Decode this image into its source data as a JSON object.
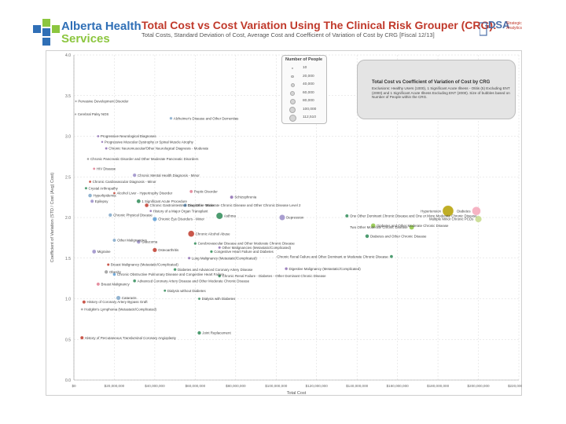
{
  "header": {
    "org_name_line1": "Alberta Health",
    "org_name_line2": "Services",
    "title": "Total Cost vs Cost Variation Using The Clinical Risk Grouper (CRG):",
    "subtitle": "Total Costs, Standard Deviation of Cost, Average Cost and Coefficient of Variation of Cost by CRG [Fiscal 12/13]",
    "partner_logo_main": "DSA",
    "partner_logo_sub_1": "Strategic",
    "partner_logo_sub_2": "Analytics"
  },
  "colors": {
    "brand_green": "#8cc63f",
    "brand_blue": "#2f6fb6",
    "title_red": "#c0392b",
    "grid": "#d8d8d8"
  },
  "legend": {
    "title": "Number of People",
    "entries": [
      "10",
      "20,000",
      "40,000",
      "60,000",
      "80,000",
      "100,000",
      "112,510"
    ]
  },
  "note": {
    "title": "Total Cost vs Coefficient of Variation of Cost by CRG",
    "body": "Exclusions: Healthy Users (1000), 1 Significant Acute Illness - Otitis (5) Excluding ENT (2000) and 1 Significant Acute Illness Excluding ENT (2000). Size of bubbles based on Number of People within the CRG."
  },
  "chart_data": {
    "type": "scatter",
    "title": "Total Cost vs Cost Variation Using The Clinical Risk Grouper (CRG)",
    "xlabel": "Total Cost",
    "ylabel": "Coefficient of Variation (STD / Cost (Avg) Cost)",
    "xlim": [
      0,
      220000000
    ],
    "ylim": [
      0,
      4
    ],
    "x_ticks": [
      "$0",
      "$20,000,000",
      "$40,000,000",
      "$60,000,000",
      "$80,000,000",
      "$100,000,000",
      "$120,000,000",
      "$140,000,000",
      "$160,000,000",
      "$180,000,000",
      "$200,000,000",
      "$220,000,000"
    ],
    "y_ticks": [
      "0.0",
      "0.5",
      "1.0",
      "1.5",
      "2.0",
      "2.5",
      "3.0",
      "3.5",
      "4.0"
    ],
    "points": [
      {
        "label": "Pervasive Development Disorder",
        "x": 1000000,
        "y": 3.43,
        "size": 10,
        "color": "#999999"
      },
      {
        "label": "Cerebral Palsy NOS",
        "x": 800000,
        "y": 3.27,
        "size": 10,
        "color": "#999999"
      },
      {
        "label": "Alzheimer's Disease and Other Dementias",
        "x": 48000000,
        "y": 3.22,
        "size": 1200,
        "color": "#7fa7c9"
      },
      {
        "label": "Progressive Neurological Diagnoses",
        "x": 12000000,
        "y": 3.0,
        "size": 300,
        "color": "#8c6bb1"
      },
      {
        "label": "Progressive Muscular Dystrophy or Spinal Muscle Atrophy",
        "x": 14000000,
        "y": 2.93,
        "size": 100,
        "color": "#8c6bb1"
      },
      {
        "label": "Chronic Neuromuscular/Other Neurological Diagnosis - Moderate",
        "x": 16000000,
        "y": 2.85,
        "size": 600,
        "color": "#8c6bb1"
      },
      {
        "label": "Chronic Pancreatic Disorder and Other Moderate Pancreatic Disorders",
        "x": 7000000,
        "y": 2.72,
        "size": 300,
        "color": "#999999"
      },
      {
        "label": "HIV Disease",
        "x": 10000000,
        "y": 2.6,
        "size": 500,
        "color": "#e07b91"
      },
      {
        "label": "Chronic Mental Health Diagnosis - Minor",
        "x": 30000000,
        "y": 2.52,
        "size": 4000,
        "color": "#9a8dc8"
      },
      {
        "label": "Chronic Cardiovascular Diagnosis - Minor",
        "x": 8000000,
        "y": 2.44,
        "size": 400,
        "color": "#c0392b"
      },
      {
        "label": "Crystal Arthropathy",
        "x": 6000000,
        "y": 2.36,
        "size": 600,
        "color": "#2e8b57"
      },
      {
        "label": "Alcohol Liver - Hypertrophy Disorder",
        "x": 20000000,
        "y": 2.3,
        "size": 300,
        "color": "#c0392b"
      },
      {
        "label": "Hyperlipidemia",
        "x": 8000000,
        "y": 2.27,
        "size": 5000,
        "color": "#7fa7c9"
      },
      {
        "label": "Peptic Disorder",
        "x": 58000000,
        "y": 2.32,
        "size": 2500,
        "color": "#e07b91"
      },
      {
        "label": "Schizophrenia",
        "x": 78000000,
        "y": 2.25,
        "size": 3000,
        "color": "#8c6bb1"
      },
      {
        "label": "Epilepsy",
        "x": 9000000,
        "y": 2.2,
        "size": 3000,
        "color": "#9a8dc8"
      },
      {
        "label": "1 Significant Acute Procedure",
        "x": 32000000,
        "y": 2.2,
        "size": 6000,
        "color": "#2e8b57"
      },
      {
        "label": "Chronic Gastrointestinal Diagnosis - Minor",
        "x": 36000000,
        "y": 2.15,
        "size": 5000,
        "color": "#c0392b"
      },
      {
        "label": "One Other Moderate Chronic Disease and Other Chronic Disease Level 2",
        "x": 55000000,
        "y": 2.15,
        "size": 3000,
        "color": "#5a9bd4"
      },
      {
        "label": "History of a Major Organ Transplant",
        "x": 38000000,
        "y": 2.08,
        "size": 300,
        "color": "#8c6bb1"
      },
      {
        "label": "Chronic Physical Disease",
        "x": 18000000,
        "y": 2.03,
        "size": 4000,
        "color": "#7fa7c9"
      },
      {
        "label": "Asthma",
        "x": 72000000,
        "y": 2.02,
        "size": 30000,
        "color": "#2e8b57"
      },
      {
        "label": "Chronic Eye Disorders - Minor",
        "x": 40000000,
        "y": 1.98,
        "size": 8000,
        "color": "#5a9bd4"
      },
      {
        "label": "Depression",
        "x": 103000000,
        "y": 2.0,
        "size": 20000,
        "color": "#9a8dc8"
      },
      {
        "label": "Hypertension",
        "x": 185000000,
        "y": 2.08,
        "size": 112510,
        "color": "#b5a000"
      },
      {
        "label": "Diabetes",
        "x": 199000000,
        "y": 2.08,
        "size": 60000,
        "color": "#f4a6b8"
      },
      {
        "label": "Multiple Minor Chronic PCDs",
        "x": 200000000,
        "y": 1.98,
        "size": 30000,
        "color": "#c5d98a"
      },
      {
        "label": "One Other Dominant Chronic Disease and One or More Moderate Chronic Disease",
        "x": 135000000,
        "y": 2.02,
        "size": 3000,
        "color": "#2e8b57"
      },
      {
        "label": "Diabetes and Other Moderate Chronic Disease",
        "x": 148000000,
        "y": 1.9,
        "size": 10000,
        "color": "#8cc63f"
      },
      {
        "label": "Two Other Moderate Chronic Disease",
        "x": 167000000,
        "y": 1.88,
        "size": 12000,
        "color": "#8cc63f"
      },
      {
        "label": "Chronic Alcohol Abuse",
        "x": 58000000,
        "y": 1.8,
        "size": 25000,
        "color": "#c0392b"
      },
      {
        "label": "Diabetes and Other Chronic Disease",
        "x": 145000000,
        "y": 1.77,
        "size": 5000,
        "color": "#2e8b57"
      },
      {
        "label": "Other Malignancies",
        "x": 20000000,
        "y": 1.72,
        "size": 3000,
        "color": "#7fa7c9"
      },
      {
        "label": "Glaucoma",
        "x": 32000000,
        "y": 1.7,
        "size": 5000,
        "color": "#9a8dc8"
      },
      {
        "label": "Cerebrovascular Disease and Other Moderate Chronic Disease",
        "x": 60000000,
        "y": 1.68,
        "size": 1000,
        "color": "#2e8b57"
      },
      {
        "label": "Other Malignancies (Metastatic/Complicated)",
        "x": 72000000,
        "y": 1.63,
        "size": 800,
        "color": "#8c6bb1"
      },
      {
        "label": "Congestive Heart Failure and Diabetes",
        "x": 68000000,
        "y": 1.58,
        "size": 1000,
        "color": "#2e8b57"
      },
      {
        "label": "Osteoarthritis",
        "x": 40000000,
        "y": 1.6,
        "size": 8000,
        "color": "#c0392b"
      },
      {
        "label": "Migraine",
        "x": 10000000,
        "y": 1.58,
        "size": 6000,
        "color": "#9a8dc8"
      },
      {
        "label": "Lung Malignancy (Metastatic/Complicated)",
        "x": 57000000,
        "y": 1.5,
        "size": 800,
        "color": "#8c6bb1"
      },
      {
        "label": "Chronic Renal Failure and Other Dominant or Moderate Chronic Disease",
        "x": 157000000,
        "y": 1.52,
        "size": 2500,
        "color": "#2e8b57"
      },
      {
        "label": "Breast Malignancy (Metastatic/Complicated)",
        "x": 17000000,
        "y": 1.42,
        "size": 800,
        "color": "#c0392b"
      },
      {
        "label": "Obesity",
        "x": 16000000,
        "y": 1.33,
        "size": 4000,
        "color": "#999999"
      },
      {
        "label": "Diabetes and Advanced Coronary Artery Disease",
        "x": 50000000,
        "y": 1.36,
        "size": 1500,
        "color": "#2e8b57"
      },
      {
        "label": "Digestive Malignancy (Metastatic/Complicated)",
        "x": 105000000,
        "y": 1.37,
        "size": 1500,
        "color": "#8c6bb1"
      },
      {
        "label": "Chronic Obstructive Pulmonary Disease and Congestive Heart Failure",
        "x": 20000000,
        "y": 1.3,
        "size": 2000,
        "color": "#5a9bd4"
      },
      {
        "label": "Chronic Renal Failure - Diabetes - Other Dominant Chronic Disease",
        "x": 72000000,
        "y": 1.28,
        "size": 1500,
        "color": "#2e8b57"
      },
      {
        "label": "Advanced Coronary Artery Disease and Other Moderate Chronic Disease",
        "x": 30000000,
        "y": 1.22,
        "size": 2000,
        "color": "#2e8b57"
      },
      {
        "label": "Breast Malignancy",
        "x": 12000000,
        "y": 1.18,
        "size": 3000,
        "color": "#e07b91"
      },
      {
        "label": "Dialysis without Diabetes",
        "x": 45000000,
        "y": 1.1,
        "size": 500,
        "color": "#2e8b57"
      },
      {
        "label": "Cataracts",
        "x": 22000000,
        "y": 1.01,
        "size": 8000,
        "color": "#7fa7c9"
      },
      {
        "label": "Dialysis with Diabetes",
        "x": 62000000,
        "y": 1.0,
        "size": 500,
        "color": "#2e8b57"
      },
      {
        "label": "History of Coronary Artery Bypass Graft",
        "x": 5000000,
        "y": 0.96,
        "size": 3000,
        "color": "#c0392b"
      },
      {
        "label": "Hodgkin's Lymphoma (Metastatic/Complicated)",
        "x": 4000000,
        "y": 0.87,
        "size": 300,
        "color": "#999999"
      },
      {
        "label": "Joint Replacement",
        "x": 62000000,
        "y": 0.58,
        "size": 4000,
        "color": "#2e8b57"
      },
      {
        "label": "History of Percutaneous Transluminal Coronary Angioplasty",
        "x": 4000000,
        "y": 0.52,
        "size": 3000,
        "color": "#c0392b"
      }
    ]
  }
}
